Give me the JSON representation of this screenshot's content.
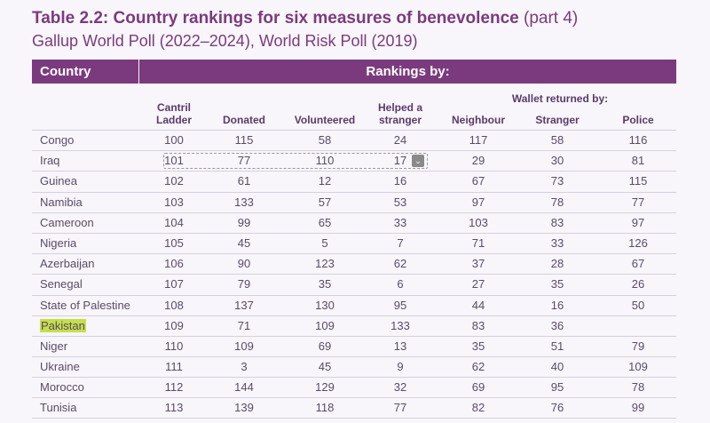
{
  "title": {
    "bold": "Table 2.2: Country rankings for six measures of benevolence",
    "part": " (part 4)"
  },
  "subtitle": "Gallup World Poll (2022–2024), World Risk Poll (2019)",
  "header": {
    "country": "Country",
    "rankings": "Rankings by:"
  },
  "wallet_group": "Wallet returned by:",
  "columns": [
    {
      "line1": "Cantril",
      "line2": "Ladder"
    },
    {
      "line1": "",
      "line2": "Donated"
    },
    {
      "line1": "",
      "line2": "Volunteered"
    },
    {
      "line1": "Helped a",
      "line2": "stranger"
    },
    {
      "line1": "",
      "line2": "Neighbour"
    },
    {
      "line1": "",
      "line2": "Stranger"
    },
    {
      "line1": "",
      "line2": "Police"
    }
  ],
  "rows": [
    {
      "country": "Congo",
      "v": [
        "100",
        "115",
        "58",
        "24",
        "117",
        "58",
        "116"
      ]
    },
    {
      "country": "Iraq",
      "v": [
        "101",
        "77",
        "110",
        "17",
        "29",
        "30",
        "81"
      ]
    },
    {
      "country": "Guinea",
      "v": [
        "102",
        "61",
        "12",
        "16",
        "67",
        "73",
        "115"
      ]
    },
    {
      "country": "Namibia",
      "v": [
        "103",
        "133",
        "57",
        "53",
        "97",
        "78",
        "77"
      ]
    },
    {
      "country": "Cameroon",
      "v": [
        "104",
        "99",
        "65",
        "33",
        "103",
        "83",
        "97"
      ]
    },
    {
      "country": "Nigeria",
      "v": [
        "105",
        "45",
        "5",
        "7",
        "71",
        "33",
        "126"
      ]
    },
    {
      "country": "Azerbaijan",
      "v": [
        "106",
        "90",
        "123",
        "62",
        "37",
        "28",
        "67"
      ]
    },
    {
      "country": "Senegal",
      "v": [
        "107",
        "79",
        "35",
        "6",
        "27",
        "35",
        "26"
      ]
    },
    {
      "country": "State of Palestine",
      "v": [
        "108",
        "137",
        "130",
        "95",
        "44",
        "16",
        "50"
      ]
    },
    {
      "country": "Pakistan",
      "v": [
        "109",
        "71",
        "109",
        "133",
        "83",
        "36",
        ""
      ]
    },
    {
      "country": "Niger",
      "v": [
        "110",
        "109",
        "69",
        "13",
        "35",
        "51",
        "79"
      ]
    },
    {
      "country": "Ukraine",
      "v": [
        "111",
        "3",
        "45",
        "9",
        "62",
        "40",
        "109"
      ]
    },
    {
      "country": "Morocco",
      "v": [
        "112",
        "144",
        "129",
        "32",
        "69",
        "95",
        "78"
      ]
    },
    {
      "country": "Tunisia",
      "v": [
        "113",
        "139",
        "118",
        "77",
        "82",
        "76",
        "99"
      ]
    }
  ],
  "selection_icon": "chevron-down-icon"
}
